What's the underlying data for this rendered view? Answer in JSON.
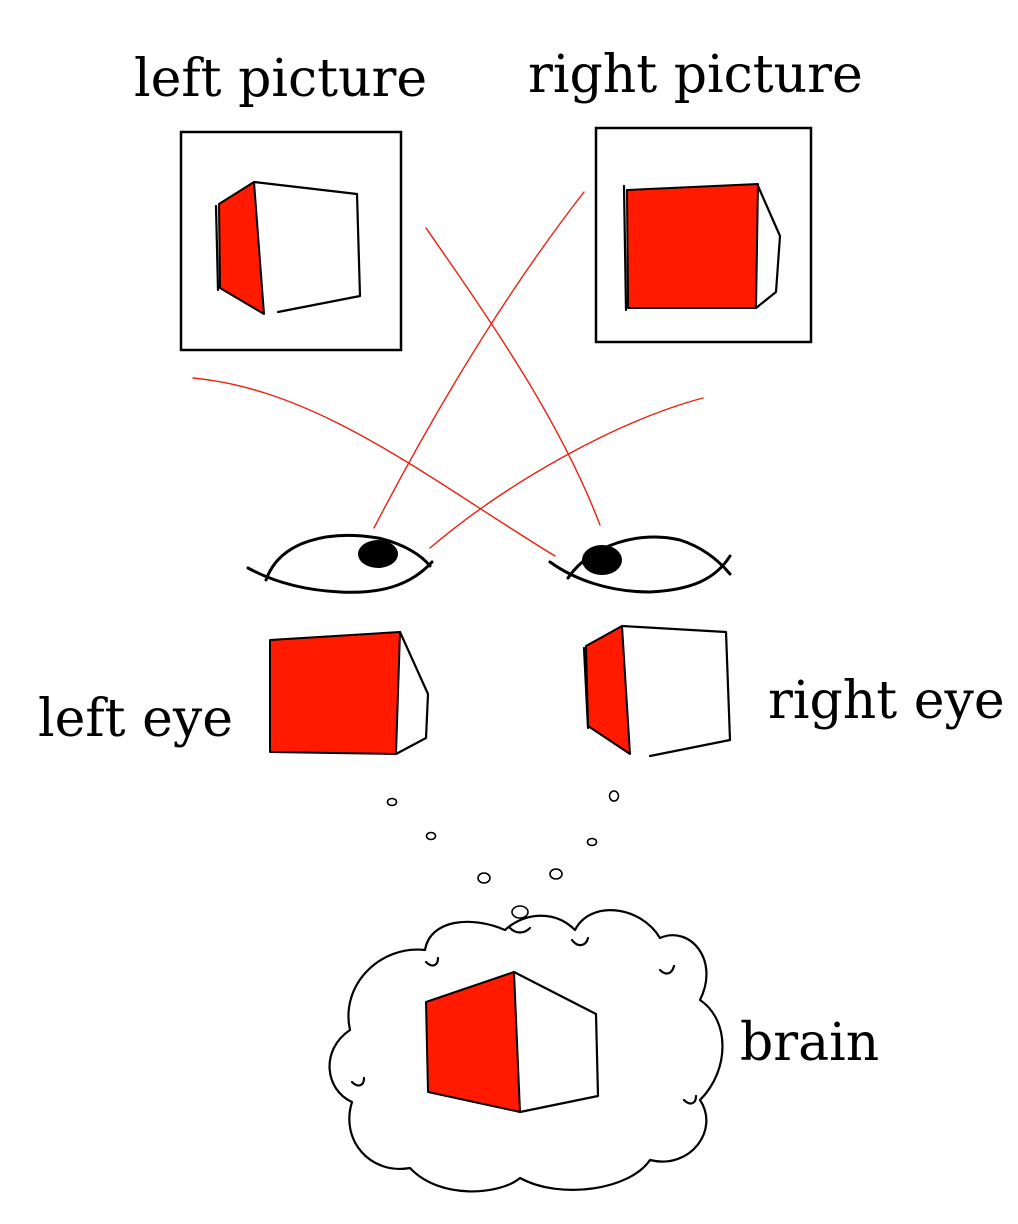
{
  "labels": {
    "left_picture": "left picture",
    "right_picture": "right picture",
    "left_eye": "left eye",
    "right_eye": "right eye",
    "brain": "brain"
  },
  "colors": {
    "red_face": "#ff1a00",
    "ray": "#e8210f",
    "ink": "#000000",
    "background": "#ffffff"
  },
  "icons": {
    "eyes": [
      "left-eye-icon",
      "right-eye-icon"
    ],
    "thought_cloud": "thought-cloud-icon"
  }
}
